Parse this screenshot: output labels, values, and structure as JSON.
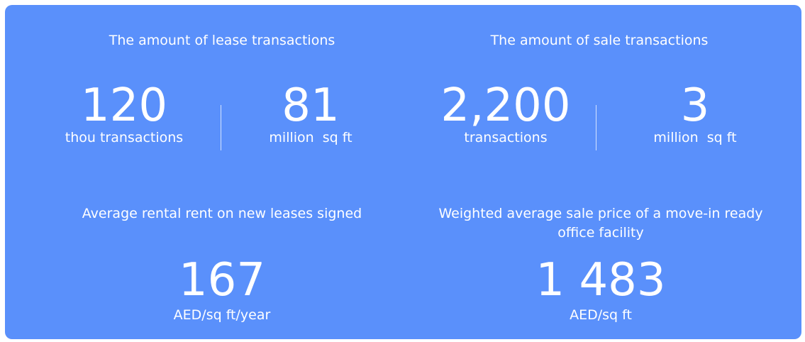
{
  "sections": [
    {
      "title": "The amount of lease transactions",
      "stats": [
        {
          "value": "120",
          "unit": "thou transactions"
        },
        {
          "value": "81",
          "unit": "million  sq ft"
        }
      ]
    },
    {
      "title": "The amount of sale transactions",
      "stats": [
        {
          "value": "2,200",
          "unit": "transactions"
        },
        {
          "value": "3",
          "unit": "million  sq ft"
        }
      ]
    }
  ],
  "highlights": [
    {
      "title": "Average rental rent on new leases signed",
      "value": "167",
      "unit": "AED/sq ft/year"
    },
    {
      "title": "Weighted average sale price of a move-in ready office facility",
      "value": "1 483",
      "unit": "AED/sq ft"
    }
  ]
}
